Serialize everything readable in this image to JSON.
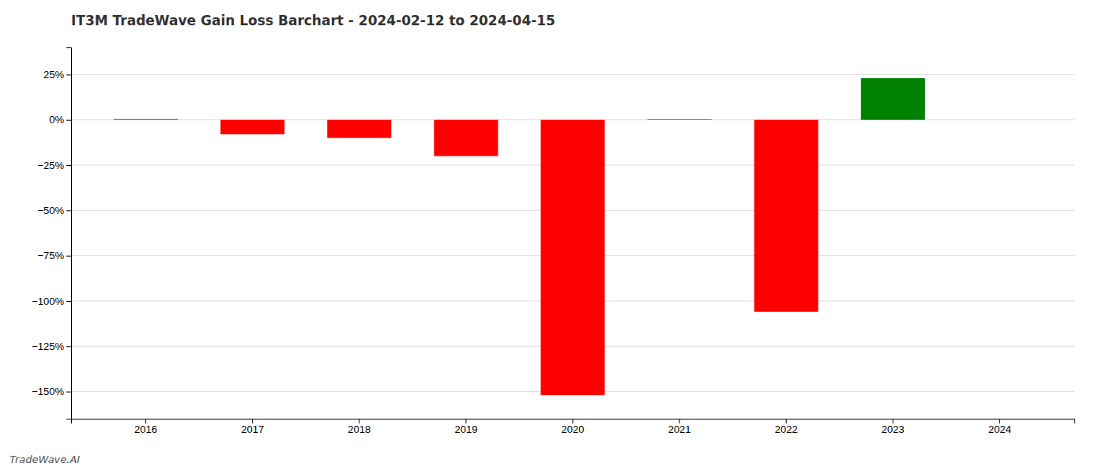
{
  "chart_data": {
    "type": "bar",
    "title": "IT3M TradeWave Gain Loss Barchart - 2024-02-12 to 2024-04-15",
    "annotations": [
      "TradeWave.AI"
    ],
    "categories": [
      "2016",
      "2017",
      "2018",
      "2019",
      "2020",
      "2021",
      "2022",
      "2023",
      "2024"
    ],
    "values": [
      0.004,
      -0.08,
      -0.1,
      -0.2,
      -1.52,
      0.003,
      -1.06,
      0.23,
      null
    ],
    "colors": [
      "#ff0000",
      "#ff0000",
      "#ff0000",
      "#ff0000",
      "#ff0000",
      "#ff0000",
      "#ff0000",
      "#008000",
      null
    ],
    "ylim": [
      -1.65,
      0.4
    ],
    "yticks": [
      {
        "value": 0.25,
        "label": "25%"
      },
      {
        "value": 0.0,
        "label": "0%"
      },
      {
        "value": -0.25,
        "label": "−25%"
      },
      {
        "value": -0.5,
        "label": "−50%"
      },
      {
        "value": -0.75,
        "label": "−75%"
      },
      {
        "value": -1.0,
        "label": "−100%"
      },
      {
        "value": -1.25,
        "label": "−125%"
      },
      {
        "value": -1.5,
        "label": "−150%"
      }
    ],
    "grid": true
  }
}
